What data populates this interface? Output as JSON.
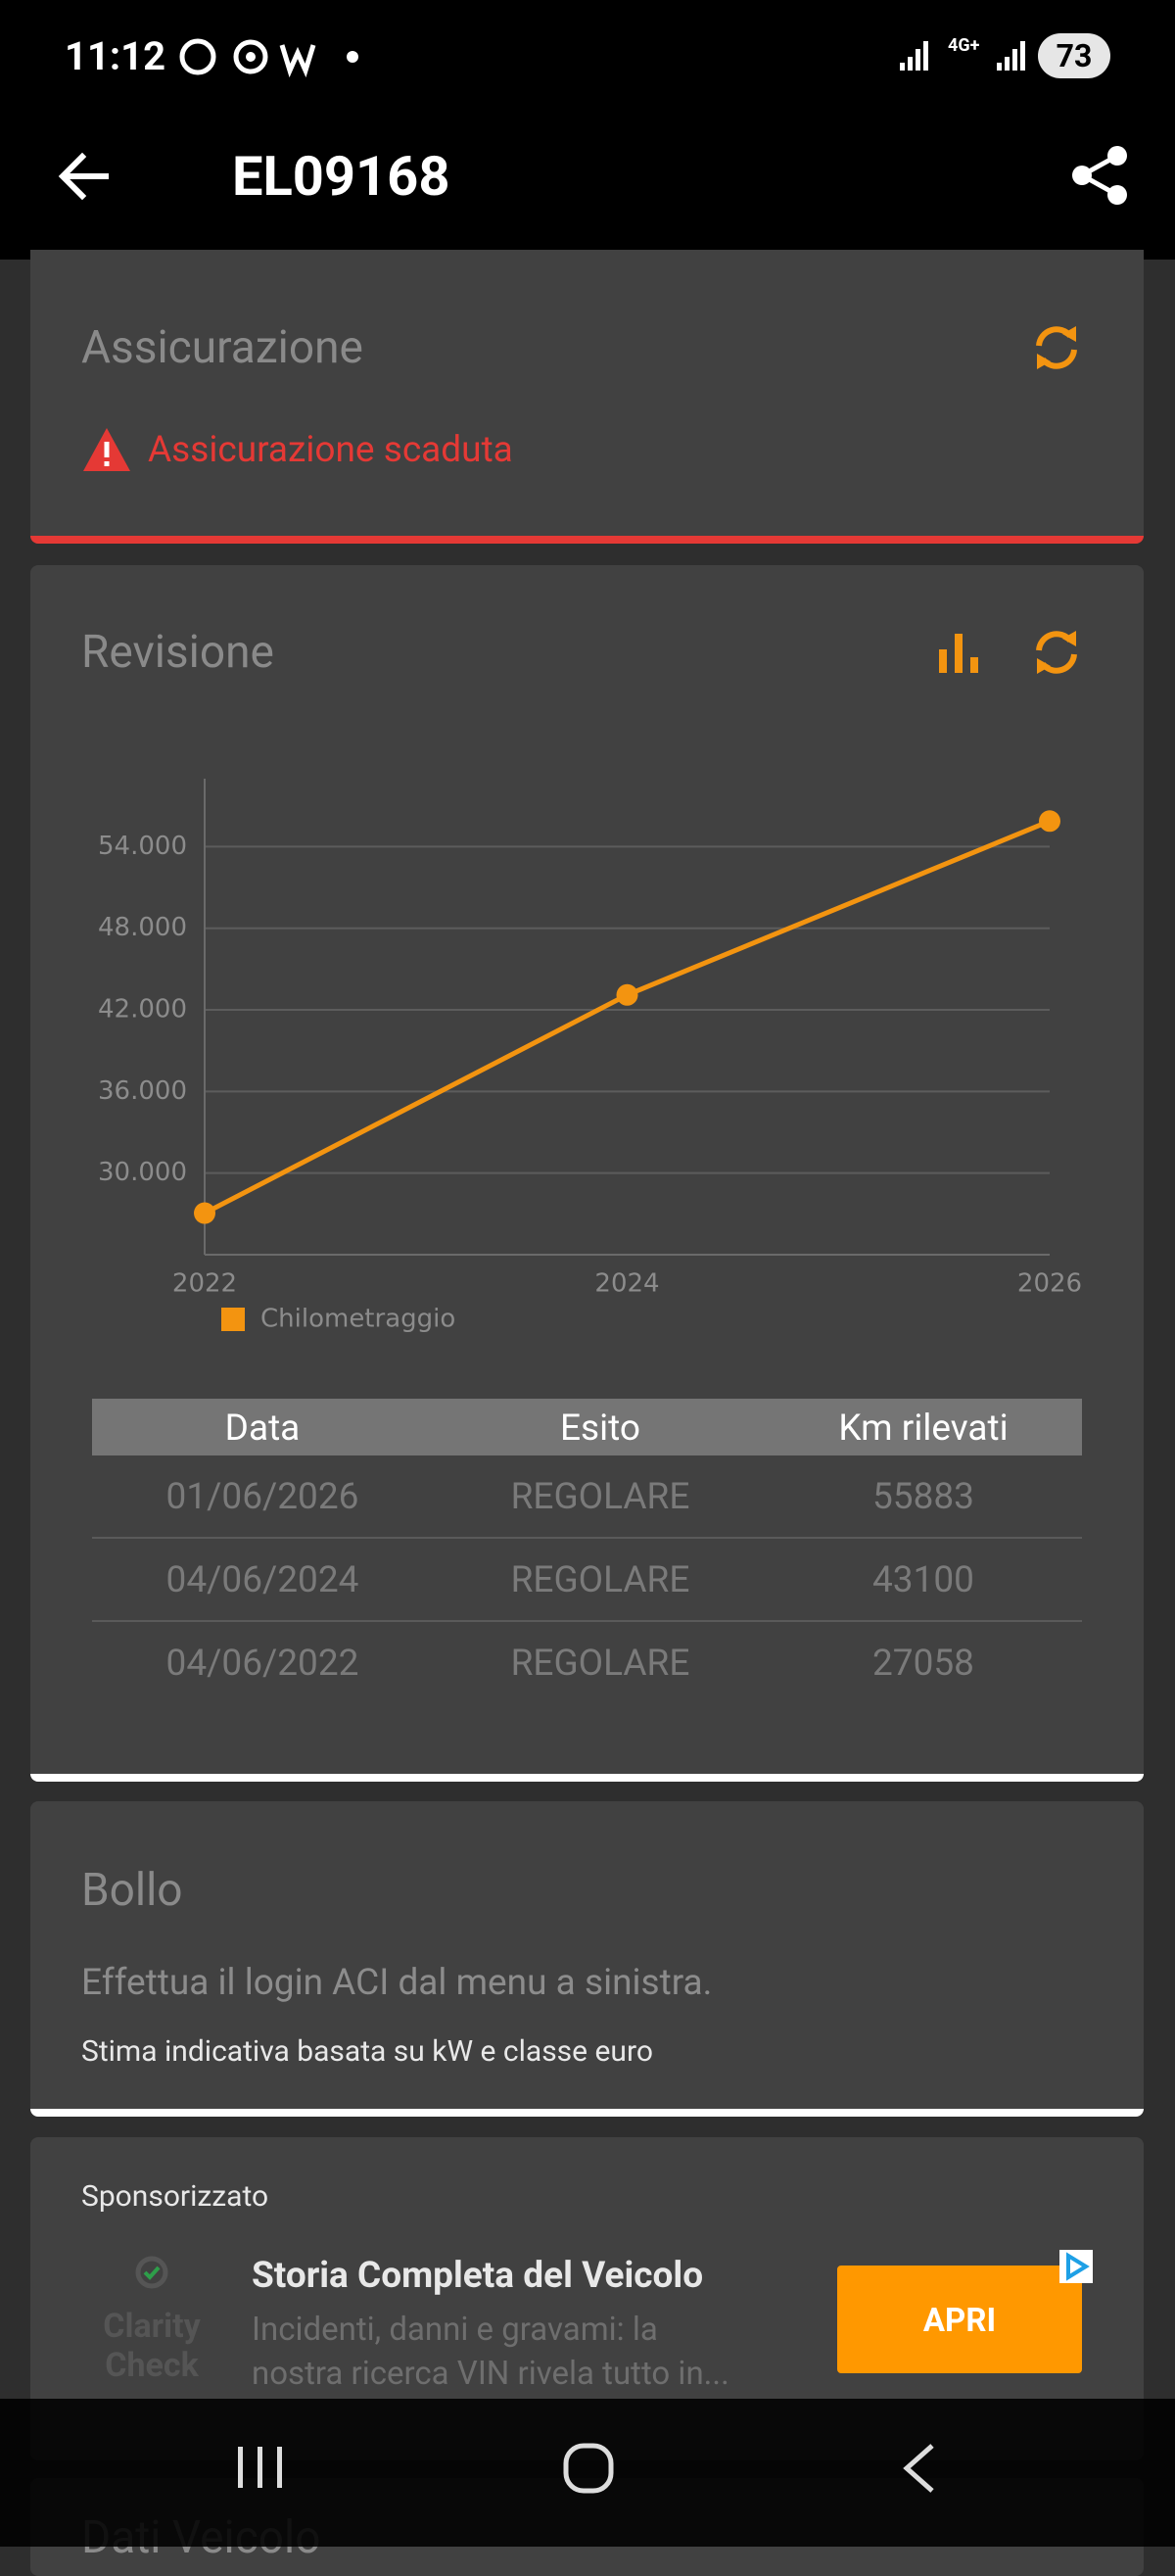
{
  "status_bar": {
    "time": "11:12",
    "network": "4G+",
    "battery": "73"
  },
  "app_bar": {
    "title": "EL09168"
  },
  "insurance": {
    "title": "Assicurazione",
    "warning": "Assicurazione scaduta"
  },
  "revision": {
    "title": "Revisione",
    "table": {
      "header": [
        "Data",
        "Esito",
        "Km rilevati"
      ],
      "rows": [
        [
          "01/06/2026",
          "REGOLARE",
          "55883"
        ],
        [
          "04/06/2024",
          "REGOLARE",
          "43100"
        ],
        [
          "04/06/2022",
          "REGOLARE",
          "27058"
        ]
      ]
    }
  },
  "chart_data": {
    "type": "line",
    "x": [
      2022,
      2024,
      2026
    ],
    "xlim": [
      2022,
      2026
    ],
    "xticks": [
      2022,
      2024,
      2026
    ],
    "ylim": [
      24000,
      59000
    ],
    "yticks": [
      {
        "value": 30000,
        "label": "30.000"
      },
      {
        "value": 36000,
        "label": "36.000"
      },
      {
        "value": 42000,
        "label": "42.000"
      },
      {
        "value": 48000,
        "label": "48.000"
      },
      {
        "value": 54000,
        "label": "54.000"
      }
    ],
    "series": [
      {
        "name": "Chilometraggio",
        "color": "#f39410",
        "values": [
          27058,
          43100,
          55883
        ]
      }
    ],
    "grid": true,
    "legend": "bottom-left"
  },
  "bollo": {
    "title": "Bollo",
    "message": "Effettua il login ACI dal menu a sinistra.",
    "note": "Stima indicativa basata su kW e classe euro"
  },
  "ad": {
    "label": "Sponsorizzato",
    "brand": [
      "Clarity",
      "Check"
    ],
    "title": "Storia Completa del Veicolo",
    "description": [
      "Incidenti, danni e gravami: la",
      "nostra ricerca VIN rivela tutto in..."
    ],
    "button": "APRI"
  },
  "next_section": {
    "title": "Dati Veicolo"
  }
}
